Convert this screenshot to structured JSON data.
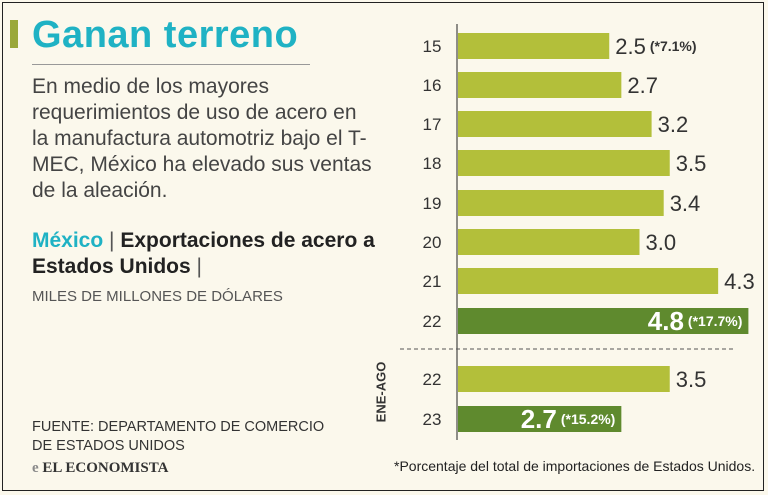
{
  "title": "Ganan terreno",
  "description": "En medio de los mayores requerimientos de uso de acero en la manufactura automotriz bajo el T-MEC, México ha elevado sus ventas de la aleación.",
  "subtitle": {
    "country": "México",
    "separator": "|",
    "label": "Exportaciones de acero a Estados Unidos",
    "end_separator": "|"
  },
  "units": "MILES DE MILLONES DE DÓLARES",
  "source": [
    "FUENTE: DEPARTAMENTO DE COMERCIO",
    "DE ESTADOS UNIDOS"
  ],
  "logo": {
    "mark": "e",
    "name": "EL ECONOMISTA"
  },
  "footnote": "*Porcentaje del total de importaciones de Estados Unidos.",
  "period_label": "ENE-AGO",
  "colors": {
    "bar": "#b3bf3a",
    "highlight": "#5f8a2e",
    "accent": "#1fb2c4"
  },
  "chart_data": {
    "type": "bar",
    "orientation": "horizontal",
    "title": "Ganan terreno",
    "unit": "MILES DE MILLONES DE DÓLARES",
    "groups": [
      {
        "name": "",
        "categories": [
          "15",
          "16",
          "17",
          "18",
          "19",
          "20",
          "21",
          "22"
        ],
        "values": [
          2.5,
          2.7,
          3.2,
          3.5,
          3.4,
          3.0,
          4.3,
          4.8
        ],
        "value_labels": [
          "2.5",
          "2.7",
          "3.2",
          "3.5",
          "3.4",
          "3.0",
          "4.3",
          "4.8"
        ],
        "annotations": [
          "(*7.1%)",
          "",
          "",
          "",
          "",
          "",
          "",
          "(*17.7%)"
        ],
        "highlight": [
          false,
          false,
          false,
          false,
          false,
          false,
          false,
          true
        ]
      },
      {
        "name": "ENE-AGO",
        "categories": [
          "22",
          "23"
        ],
        "values": [
          3.5,
          2.7
        ],
        "value_labels": [
          "3.5",
          "2.7"
        ],
        "annotations": [
          "",
          "(*15.2%)"
        ],
        "highlight": [
          false,
          true
        ]
      }
    ],
    "xlim": [
      0,
      5
    ],
    "grid": false,
    "legend": "none"
  }
}
